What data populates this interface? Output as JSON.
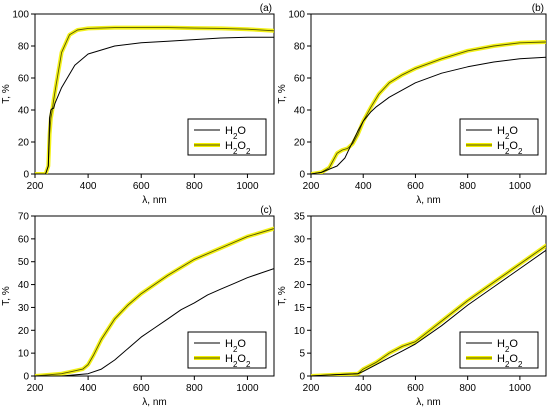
{
  "chart_data": [
    {
      "type": "line",
      "panel_label": "(a)",
      "xlabel": "λ, nm",
      "ylabel": "T, %",
      "xlim": [
        200,
        1100
      ],
      "ylim": [
        0,
        100
      ],
      "xticks": [
        200,
        400,
        600,
        800,
        1000
      ],
      "yticks": [
        0,
        20,
        40,
        60,
        80,
        100
      ],
      "legend_position": "middle-right",
      "series": [
        {
          "name": "H2O",
          "color": "#000000",
          "x": [
            200,
            240,
            250,
            255,
            260,
            265,
            270,
            275,
            280,
            300,
            350,
            400,
            500,
            600,
            700,
            800,
            900,
            1000,
            1100
          ],
          "y": [
            0,
            0,
            5,
            35,
            40,
            41,
            41,
            44,
            46,
            54,
            68,
            75,
            80,
            82,
            83,
            84,
            85,
            85.5,
            85.5
          ]
        },
        {
          "name": "H2O2",
          "color": "#f2ef00",
          "line_color": "#555500",
          "x": [
            200,
            240,
            250,
            255,
            260,
            265,
            270,
            280,
            300,
            330,
            360,
            400,
            500,
            600,
            700,
            800,
            900,
            1000,
            1100
          ],
          "y": [
            0,
            0,
            5,
            25,
            35,
            40,
            46,
            56,
            76,
            87,
            90,
            91,
            91.5,
            91.5,
            91.5,
            91.2,
            91,
            90.5,
            89.5
          ]
        }
      ]
    },
    {
      "type": "line",
      "panel_label": "(b)",
      "xlabel": "λ, nm",
      "ylabel": "T, %",
      "xlim": [
        200,
        1100
      ],
      "ylim": [
        0,
        100
      ],
      "xticks": [
        200,
        400,
        600,
        800,
        1000
      ],
      "yticks": [
        0,
        20,
        40,
        60,
        80,
        100
      ],
      "legend_position": "middle-right",
      "series": [
        {
          "name": "H2O",
          "color": "#000000",
          "x": [
            200,
            240,
            270,
            300,
            330,
            350,
            380,
            400,
            430,
            450,
            500,
            600,
            700,
            800,
            900,
            1000,
            1100
          ],
          "y": [
            0,
            1,
            3,
            5,
            10,
            17,
            27,
            33,
            39,
            42,
            48,
            57,
            63,
            67,
            70,
            72,
            73
          ]
        },
        {
          "name": "H2O2",
          "color": "#f2ef00",
          "line_color": "#555500",
          "x": [
            200,
            240,
            270,
            300,
            320,
            340,
            360,
            380,
            400,
            430,
            460,
            500,
            550,
            600,
            700,
            800,
            900,
            1000,
            1100
          ],
          "y": [
            0,
            1,
            4,
            13,
            15,
            16,
            19,
            25,
            33,
            42,
            50,
            57,
            62,
            66,
            72,
            77,
            80,
            82,
            82.5
          ]
        }
      ]
    },
    {
      "type": "line",
      "panel_label": "(c)",
      "xlabel": "λ, nm",
      "ylabel": "T, %",
      "xlim": [
        200,
        1100
      ],
      "ylim": [
        0,
        70
      ],
      "xticks": [
        200,
        400,
        600,
        800,
        1000
      ],
      "yticks": [
        0,
        10,
        20,
        30,
        40,
        50,
        60,
        70
      ],
      "legend_position": "bottom-right",
      "series": [
        {
          "name": "H2O",
          "color": "#000000",
          "x": [
            200,
            300,
            350,
            400,
            450,
            500,
            550,
            600,
            650,
            700,
            750,
            800,
            850,
            900,
            950,
            1000,
            1050,
            1100
          ],
          "y": [
            0,
            0,
            0.5,
            1,
            3,
            7,
            12,
            17,
            21,
            25,
            29,
            32,
            35.5,
            38,
            40.5,
            43,
            45,
            47
          ]
        },
        {
          "name": "H2O2",
          "color": "#f2ef00",
          "line_color": "#555500",
          "x": [
            200,
            300,
            340,
            380,
            400,
            420,
            450,
            500,
            550,
            600,
            700,
            800,
            900,
            1000,
            1100
          ],
          "y": [
            0,
            1,
            2,
            3,
            5,
            9,
            16,
            25,
            31,
            36,
            44,
            51,
            56,
            61,
            64.5
          ]
        }
      ]
    },
    {
      "type": "line",
      "panel_label": "(d)",
      "xlabel": "λ, nm",
      "ylabel": "T, %",
      "xlim": [
        200,
        1100
      ],
      "ylim": [
        0,
        35
      ],
      "xticks": [
        200,
        400,
        600,
        800,
        1000
      ],
      "yticks": [
        0,
        5,
        10,
        15,
        20,
        25,
        30,
        35
      ],
      "legend_position": "bottom-right",
      "series": [
        {
          "name": "H2O",
          "color": "#000000",
          "x": [
            200,
            300,
            380,
            400,
            450,
            500,
            550,
            600,
            700,
            800,
            900,
            1000,
            1100
          ],
          "y": [
            0,
            0.3,
            0.5,
            1,
            2.5,
            4,
            5.5,
            7,
            11,
            15.5,
            19.5,
            23.5,
            27.5
          ]
        },
        {
          "name": "H2O2",
          "color": "#f2ef00",
          "line_color": "#555500",
          "x": [
            200,
            300,
            380,
            400,
            450,
            500,
            550,
            600,
            700,
            800,
            900,
            1000,
            1100
          ],
          "y": [
            0,
            0.3,
            0.5,
            1.5,
            3,
            5,
            6.5,
            7.5,
            12,
            16.5,
            20.5,
            24.5,
            28.5
          ]
        }
      ]
    }
  ]
}
